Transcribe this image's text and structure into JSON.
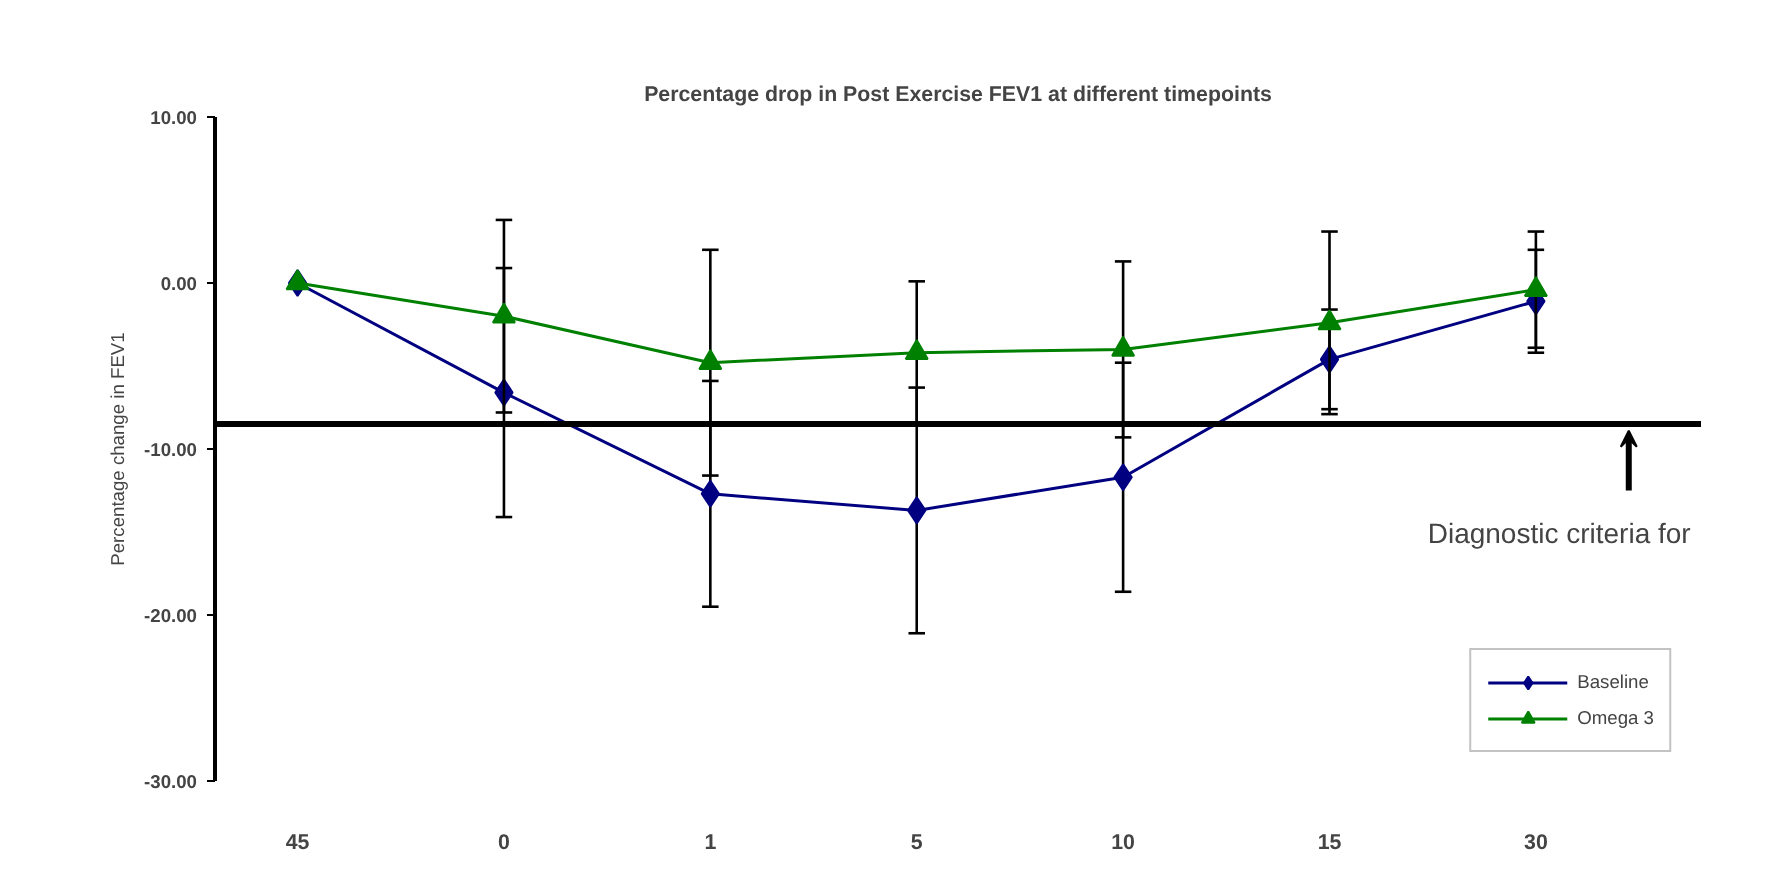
{
  "chart_data": {
    "type": "line",
    "title": "Percentage drop in Post Exercise FEV1 at different timepoints",
    "ylabel": "Percentage change in FEV1",
    "categories": [
      "45",
      "0",
      "1",
      "5",
      "10",
      "15",
      "30"
    ],
    "series": [
      {
        "name": "Baseline",
        "color": "#000080",
        "marker": "diamond",
        "values": [
          0,
          -6.6,
          -12.7,
          -13.7,
          -11.7,
          -4.6,
          -1.1
        ],
        "errors": [
          null,
          7.5,
          6.8,
          7.4,
          6.9,
          3.0,
          3.1
        ]
      },
      {
        "name": "Omega 3",
        "color": "#008000",
        "marker": "triangle",
        "values": [
          0,
          -2.0,
          -4.8,
          -4.2,
          -4.0,
          -2.4,
          -0.4
        ],
        "errors": [
          null,
          5.8,
          6.8,
          4.3,
          5.3,
          5.5,
          3.5
        ]
      }
    ],
    "ylim": [
      -30,
      10
    ],
    "yticks": [
      {
        "value": -30,
        "label": "-30.00"
      },
      {
        "value": -20,
        "label": "-20.00"
      },
      {
        "value": -10,
        "label": "-10.00"
      },
      {
        "value": 0,
        "label": "0.00"
      },
      {
        "value": 10,
        "label": "10.00"
      }
    ],
    "ref_lines": [
      {
        "axis": "y",
        "value": -8.5,
        "label": "Diagnostic criteria for",
        "color": "#000000"
      }
    ],
    "legend": "bottom right",
    "grid": false,
    "line_style": "solid"
  }
}
